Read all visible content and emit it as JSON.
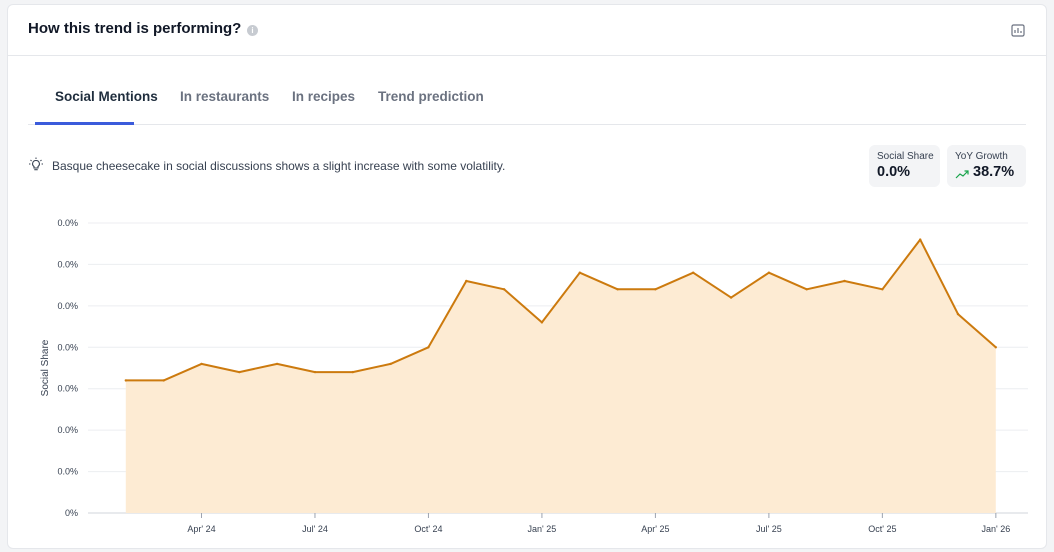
{
  "header": {
    "title": "How this trend is performing?",
    "info_icon": "info-icon",
    "export_icon": "chart-export-icon"
  },
  "tabs": [
    {
      "label": "Social Mentions",
      "active": true
    },
    {
      "label": "In restaurants",
      "active": false
    },
    {
      "label": "In recipes",
      "active": false
    },
    {
      "label": "Trend prediction",
      "active": false
    }
  ],
  "insight": {
    "icon": "lightbulb-icon",
    "text": "Basque cheesecake in social discussions shows a slight increase with some volatility."
  },
  "metrics": {
    "social_share": {
      "label": "Social Share",
      "value": "0.0%"
    },
    "yoy_growth": {
      "label": "YoY Growth",
      "value": "38.7%",
      "icon": "trend-up-icon",
      "color": "#16a34a"
    }
  },
  "colors": {
    "accent": "#3b5bdb",
    "line": "#cc7a0e",
    "area": "#fdebd3"
  },
  "chart_data": {
    "type": "area",
    "ylabel": "Social Share",
    "ytick_labels": [
      "0%",
      "0.0%",
      "0.0%",
      "0.0%",
      "0.0%",
      "0.0%",
      "0.0%",
      "0.0%"
    ],
    "xtick_labels": [
      "Apr' 24",
      "Jul' 24",
      "Oct' 24",
      "Jan' 25",
      "Apr' 25",
      "Jul' 25",
      "Oct' 25",
      "Jan' 26"
    ],
    "xtick_months": [
      3,
      6,
      9,
      12,
      15,
      18,
      21,
      24
    ],
    "x_months": [
      1,
      2,
      3,
      4,
      5,
      6,
      7,
      8,
      9,
      10,
      11,
      12,
      13,
      14,
      15,
      16,
      17,
      18,
      19,
      20,
      21,
      22,
      23,
      24
    ],
    "ylim": [
      0,
      7
    ],
    "grid": true,
    "series": [
      {
        "values": [
          3.2,
          3.2,
          3.6,
          3.4,
          3.6,
          3.4,
          3.4,
          3.6,
          4.0,
          5.6,
          5.4,
          4.6,
          5.8,
          5.4,
          5.4,
          5.8,
          5.2,
          5.8,
          5.4,
          5.6,
          5.4,
          6.6,
          4.8,
          4.0
        ]
      }
    ]
  }
}
